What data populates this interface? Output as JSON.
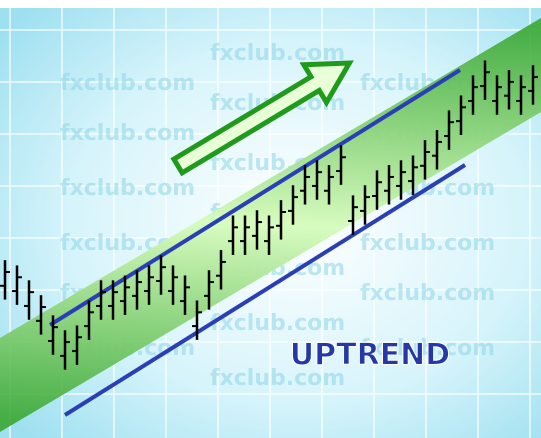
{
  "chart_data": {
    "type": "range-bar",
    "annotation": "UPTREND",
    "watermark": "fxclub.com",
    "color": "#000000",
    "ylim": [
      0,
      100
    ],
    "high": [
      40.6,
      39.4,
      36.0,
      32.6,
      28.0,
      24.6,
      25.7,
      31.4,
      36.0,
      36.0,
      37.1,
      38.3,
      39.4,
      41.7,
      39.4,
      37.1,
      31.4,
      38.3,
      42.9,
      50.8,
      50.8,
      52.0,
      50.8,
      54.3,
      57.7,
      62.3,
      63.4,
      62.3,
      66.8,
      55.4,
      57.7,
      61.1,
      62.3,
      63.4,
      64.5,
      68.0,
      70.3,
      74.8,
      78.2,
      82.8,
      86.2,
      82.8,
      84.0,
      82.8,
      85.1
    ],
    "low": [
      31.6,
      30.4,
      27.0,
      23.6,
      19.0,
      15.6,
      16.7,
      22.4,
      27.0,
      27.0,
      28.1,
      29.3,
      30.4,
      32.7,
      30.4,
      28.1,
      22.4,
      29.3,
      33.9,
      41.8,
      41.8,
      43.0,
      41.8,
      45.3,
      48.7,
      53.3,
      54.4,
      53.3,
      57.8,
      46.4,
      48.7,
      52.1,
      53.3,
      54.4,
      55.5,
      59.0,
      61.3,
      65.8,
      69.2,
      73.8,
      77.2,
      73.8,
      75.0,
      73.8,
      76.1
    ]
  }
}
